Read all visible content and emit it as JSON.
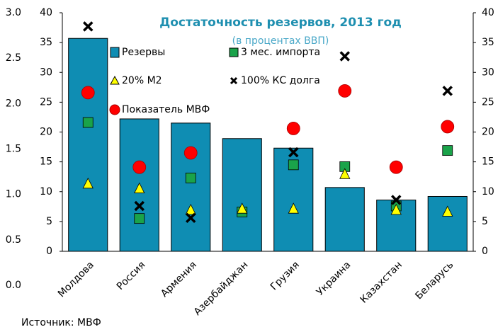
{
  "chart_data": {
    "type": "bar",
    "title": "Достаточность резервов, 2013 год",
    "subtitle": "(в процентах ВВП)",
    "source": "Источник: МВФ",
    "categories": [
      "Молдова",
      "Россия",
      "Армения",
      "Азербайджан",
      "Грузия",
      "Украина",
      "Казахстан",
      "Беларусь"
    ],
    "series": [
      {
        "name": "Резервы",
        "color": "#0f8db3",
        "marker": "bar",
        "values": [
          35.7,
          22.2,
          21.5,
          18.9,
          17.3,
          10.7,
          8.6,
          9.2
        ]
      },
      {
        "name": "3 мес. импорта",
        "color": "#1aa34a",
        "marker": "square",
        "values": [
          21.6,
          5.5,
          12.3,
          6.6,
          14.5,
          14.2,
          7.6,
          16.9
        ]
      },
      {
        "name": "20%  M2",
        "color": "#ffff00",
        "marker": "triangle",
        "values": [
          11.3,
          10.5,
          6.9,
          7.1,
          7.1,
          12.9,
          6.9,
          6.6
        ]
      },
      {
        "name": "100% КС долга",
        "color": "#000000",
        "marker": "cross",
        "values": [
          37.7,
          7.6,
          5.6,
          null,
          16.6,
          32.7,
          8.6,
          26.9
        ]
      },
      {
        "name": "Показатель МВФ",
        "color": "#ff0000",
        "marker": "circle",
        "values": [
          26.6,
          14.1,
          16.5,
          null,
          20.6,
          26.9,
          14.1,
          20.9
        ]
      }
    ],
    "ylim": [
      0,
      40
    ],
    "yticks": [
      0,
      5,
      10,
      15,
      20,
      25,
      30,
      35,
      40
    ],
    "y2lim": [
      0,
      40
    ],
    "y2ticks": [
      0,
      5,
      10,
      15,
      20,
      25,
      30,
      35,
      40
    ],
    "y3lim": [
      0,
      3
    ],
    "y3ticks": [
      {
        "value": 0,
        "label": "0.0"
      },
      {
        "value": 0.5,
        "label": "0.5"
      },
      {
        "value": 1,
        "label": "1.0"
      },
      {
        "value": 1.5,
        "label": "1.5"
      },
      {
        "value": 2,
        "label": "2.0"
      },
      {
        "value": 2.5,
        "label": "2.5"
      },
      {
        "value": 3,
        "label": "3.0"
      }
    ],
    "grid": false
  }
}
